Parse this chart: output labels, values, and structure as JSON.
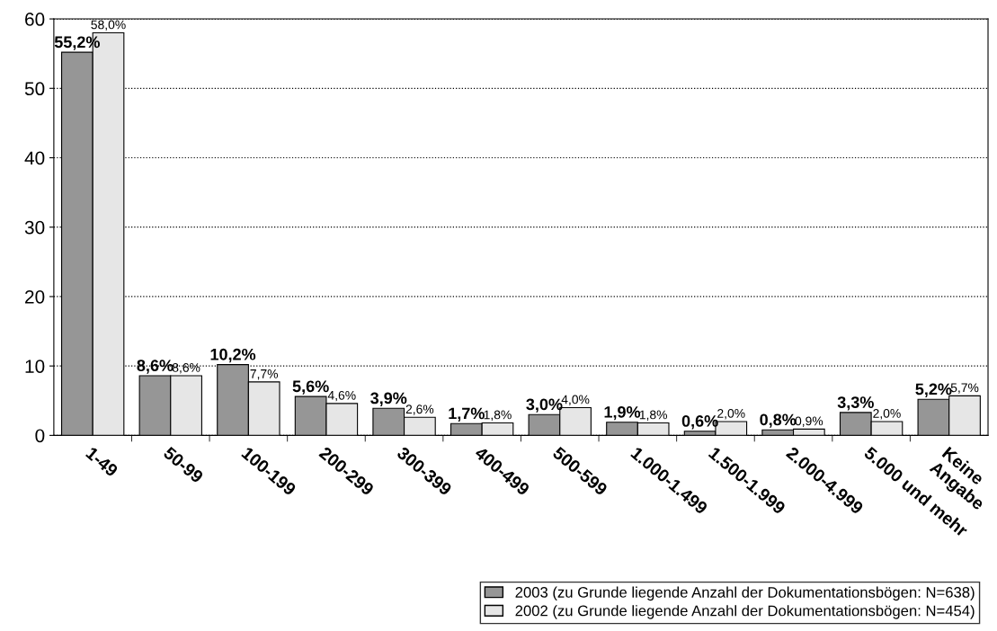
{
  "chart_data": {
    "type": "bar",
    "categories": [
      "1-49",
      "50-99",
      "100-199",
      "200-299",
      "300-399",
      "400-499",
      "500-599",
      "1.000-1.499",
      "1.500-1.999",
      "2.000-4.999",
      "5.000 und mehr",
      "Keine\nAngabe"
    ],
    "series": [
      {
        "name": "2003 (zu Grunde liegende Anzahl der Dokumentationsbögen: N=638)",
        "color": "#969696",
        "values": [
          55.2,
          8.6,
          10.2,
          5.6,
          3.9,
          1.7,
          3.0,
          1.9,
          0.6,
          0.8,
          3.3,
          5.2
        ],
        "value_labels": [
          "55,2%",
          "8,6%",
          "10,2%",
          "5,6%",
          "3,9%",
          "1,7%",
          "3,0%",
          "1,9%",
          "0,6%",
          "0,8%",
          "3,3%",
          "5,2%"
        ]
      },
      {
        "name": "2002 (zu Grunde liegende Anzahl der Dokumentationsbögen: N=454)",
        "color": "#e6e6e6",
        "values": [
          58.0,
          8.6,
          7.7,
          4.6,
          2.6,
          1.8,
          4.0,
          1.8,
          2.0,
          0.9,
          2.0,
          5.7
        ],
        "value_labels": [
          "58,0%",
          "8,6%",
          "7,7%",
          "4,6%",
          "2,6%",
          "1,8%",
          "4,0%",
          "1,8%",
          "2,0%",
          "0,9%",
          "2,0%",
          "5,7%"
        ]
      }
    ],
    "ylim": [
      0,
      60
    ],
    "yticks": [
      0,
      10,
      20,
      30,
      40,
      50,
      60
    ],
    "grid": "y",
    "legend": "bottom right"
  }
}
